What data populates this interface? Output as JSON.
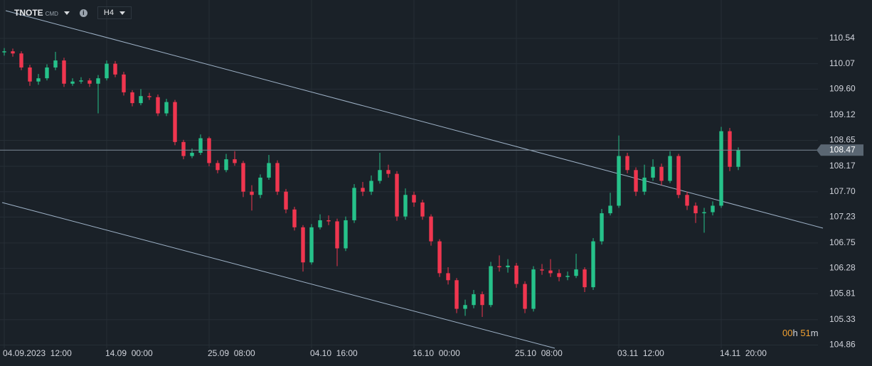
{
  "toolbar": {
    "symbol": "TNOTE",
    "exchange": "CMD",
    "timeframe": "H4"
  },
  "countdown": {
    "hours": "00",
    "hours_unit": "h",
    "minutes": "51",
    "minutes_unit": "m"
  },
  "chart_data": {
    "type": "candlestick",
    "up_color": "#26c28a",
    "down_color": "#f0364f",
    "open": [
      110.28,
      110.3,
      110.26,
      110.0,
      109.74,
      109.8,
      110.0,
      110.13,
      109.7,
      109.74,
      109.76,
      109.7,
      109.8,
      110.07,
      109.87,
      109.54,
      109.34,
      109.47,
      109.45,
      109.15,
      109.36,
      108.62,
      108.36,
      108.42,
      108.69,
      108.23,
      108.1,
      108.3,
      108.23,
      107.7,
      107.64,
      107.96,
      108.23,
      107.7,
      107.37,
      107.04,
      106.39,
      107.04,
      107.17,
      107.15,
      106.65,
      107.17,
      107.77,
      107.7,
      107.9,
      108.1,
      108.03,
      107.24,
      107.64,
      107.5,
      107.24,
      106.78,
      106.19,
      106.06,
      105.53,
      105.6,
      105.8,
      105.6,
      106.32,
      106.3,
      106.33,
      105.99,
      105.53,
      106.26,
      106.24,
      106.19,
      106.12,
      106.14,
      106.26,
      105.93,
      106.78,
      107.3,
      107.44,
      108.36,
      108.1,
      107.7,
      107.96,
      108.16,
      107.9,
      108.36,
      107.64,
      107.44,
      107.3,
      107.32,
      107.44,
      108.82,
      108.16
    ],
    "high": [
      110.36,
      110.35,
      110.3,
      110.05,
      109.88,
      110.06,
      110.29,
      110.18,
      109.8,
      109.82,
      109.8,
      109.86,
      110.13,
      110.12,
      109.92,
      109.58,
      109.6,
      109.53,
      109.5,
      109.42,
      109.4,
      108.66,
      108.5,
      108.76,
      108.72,
      108.28,
      108.4,
      108.45,
      108.27,
      107.82,
      108.02,
      108.38,
      108.28,
      107.75,
      107.42,
      107.08,
      107.1,
      107.28,
      107.26,
      107.2,
      107.24,
      107.84,
      107.88,
      108.0,
      108.42,
      108.2,
      108.08,
      107.76,
      107.7,
      107.55,
      107.28,
      106.82,
      106.3,
      106.1,
      105.7,
      105.88,
      105.85,
      106.4,
      106.52,
      106.45,
      106.38,
      106.04,
      106.32,
      106.36,
      106.45,
      106.26,
      106.22,
      106.55,
      106.3,
      106.84,
      107.38,
      107.68,
      108.74,
      108.42,
      108.15,
      108.2,
      108.3,
      108.22,
      108.45,
      108.4,
      107.7,
      107.5,
      107.4,
      107.52,
      108.9,
      108.88,
      108.52
    ],
    "low": [
      110.22,
      110.2,
      109.95,
      109.66,
      109.68,
      109.76,
      109.95,
      109.64,
      109.66,
      109.7,
      109.64,
      109.15,
      109.76,
      109.82,
      109.48,
      109.28,
      109.3,
      109.4,
      109.1,
      109.1,
      108.56,
      108.3,
      108.32,
      108.38,
      108.17,
      108.04,
      108.06,
      108.18,
      107.6,
      107.35,
      107.58,
      107.92,
      107.64,
      107.3,
      106.98,
      106.22,
      106.35,
      107.0,
      107.08,
      106.32,
      106.6,
      107.12,
      107.62,
      107.64,
      107.85,
      107.96,
      107.16,
      107.18,
      107.42,
      107.18,
      106.7,
      106.12,
      105.98,
      105.45,
      105.4,
      105.54,
      105.38,
      105.56,
      106.22,
      106.2,
      105.92,
      105.45,
      105.48,
      106.16,
      106.12,
      106.04,
      106.06,
      106.1,
      105.84,
      105.88,
      106.72,
      107.26,
      107.4,
      108.04,
      107.62,
      107.64,
      107.9,
      107.82,
      107.86,
      107.58,
      107.36,
      107.12,
      106.94,
      107.26,
      107.4,
      108.08,
      108.1
    ],
    "close": [
      110.3,
      110.26,
      110.0,
      109.74,
      109.8,
      110.0,
      110.13,
      109.7,
      109.74,
      109.76,
      109.7,
      109.8,
      110.07,
      109.87,
      109.54,
      109.34,
      109.47,
      109.45,
      109.15,
      109.36,
      108.62,
      108.36,
      108.42,
      108.69,
      108.23,
      108.1,
      108.3,
      108.23,
      107.7,
      107.64,
      107.96,
      108.23,
      107.7,
      107.37,
      107.04,
      106.39,
      107.04,
      107.17,
      107.15,
      106.65,
      107.17,
      107.77,
      107.7,
      107.9,
      108.1,
      108.03,
      107.24,
      107.64,
      107.5,
      107.24,
      106.78,
      106.19,
      106.06,
      105.53,
      105.6,
      105.8,
      105.6,
      106.32,
      106.3,
      106.33,
      105.99,
      105.53,
      106.26,
      106.24,
      106.19,
      106.12,
      106.14,
      106.26,
      105.93,
      106.78,
      107.3,
      107.44,
      108.36,
      108.1,
      107.7,
      107.96,
      108.16,
      107.9,
      108.36,
      107.64,
      107.44,
      107.3,
      107.32,
      107.44,
      108.82,
      108.16,
      108.47
    ],
    "last_price": 108.47,
    "xlim": [
      -0.5,
      95.33
    ],
    "xticks": [
      {
        "value": 0,
        "label": "04.09.2023  12:00"
      },
      {
        "value": 12,
        "label": "14.09  00:00"
      },
      {
        "value": 24,
        "label": "25.09  08:00"
      },
      {
        "value": 36,
        "label": "04.10  16:00"
      },
      {
        "value": 48,
        "label": "16.10  00:00"
      },
      {
        "value": 60,
        "label": "25.10  08:00"
      },
      {
        "value": 72,
        "label": "03.11  12:00"
      },
      {
        "value": 84,
        "label": "14.11  20:00"
      }
    ],
    "ylim": [
      104.8,
      111.25
    ],
    "yticks": [
      110.54,
      {
        "value": 110.07,
        "label": "110.07"
      },
      {
        "value": 109.6,
        "label": "109.60"
      },
      109.12,
      108.65,
      108.17,
      {
        "value": 107.7,
        "label": "107.70"
      },
      107.23,
      106.75,
      106.28,
      105.81,
      105.33,
      104.86
    ],
    "grid": true
  }
}
